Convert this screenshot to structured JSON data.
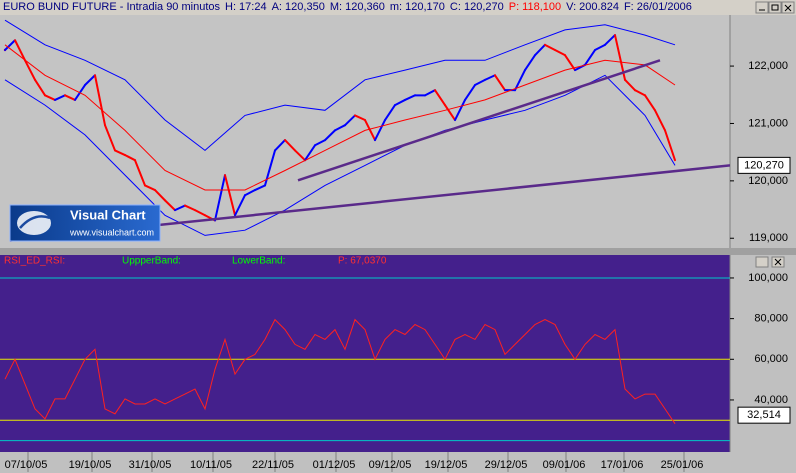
{
  "window": {
    "title": "EURO BUND FUTURE - Intradia 90 minutos",
    "info": [
      {
        "text": "H: 17:24",
        "color": "#00007f"
      },
      {
        "text": "A: 120,350",
        "color": "#00007f"
      },
      {
        "text": "M: 120,360",
        "color": "#00007f"
      },
      {
        "text": "m: 120,170",
        "color": "#00007f"
      },
      {
        "text": "C: 120,270",
        "color": "#00007f"
      },
      {
        "text": "P: 118,100",
        "color": "#ff0000"
      },
      {
        "text": "V: 200.824",
        "color": "#00007f"
      },
      {
        "text": "F: 26/01/2006",
        "color": "#00007f"
      }
    ],
    "logo": {
      "name": "Visual Chart",
      "url": "www.visualchart.com"
    }
  },
  "chart_data": [
    {
      "type": "line",
      "xlim": [
        -0.5,
        72.5
      ],
      "ylim": [
        118.83,
        122.89
      ],
      "yticks": [
        {
          "value": 122,
          "label": "122,000"
        },
        {
          "value": 121,
          "label": "121,000"
        },
        {
          "value": 120,
          "label": "120,000"
        },
        {
          "value": 119,
          "label": "119,000"
        }
      ],
      "marker": {
        "value": 120.27,
        "label": "120,270"
      },
      "series": [
        {
          "color": "#0000ff",
          "down_color": "#ff0000",
          "width": 2,
          "x": [
            0,
            1,
            2,
            3,
            4,
            5,
            6,
            7,
            8,
            9,
            10,
            11,
            12,
            13,
            14,
            15,
            16,
            17,
            18,
            19,
            20,
            21,
            22,
            23,
            24,
            25,
            26,
            27,
            28,
            29,
            30,
            31,
            32,
            33,
            34,
            35,
            36,
            37,
            38,
            39,
            40,
            41,
            42,
            43,
            44,
            45,
            46,
            47,
            48,
            49,
            50,
            51,
            52,
            53,
            54,
            55,
            56,
            57,
            58,
            59,
            60,
            61,
            62,
            63,
            64,
            65,
            66,
            67
          ],
          "values": [
            122.28,
            122.45,
            122.1,
            121.76,
            121.49,
            121.41,
            121.49,
            121.41,
            121.67,
            121.84,
            120.97,
            120.53,
            120.45,
            120.36,
            119.92,
            119.84,
            119.66,
            119.49,
            119.57,
            119.49,
            119.4,
            119.31,
            120.1,
            119.4,
            119.75,
            119.84,
            119.92,
            120.53,
            120.71,
            120.53,
            120.36,
            120.62,
            120.71,
            120.88,
            120.97,
            121.14,
            121.06,
            120.71,
            121.06,
            121.32,
            121.41,
            121.49,
            121.49,
            121.58,
            121.32,
            121.06,
            121.41,
            121.67,
            121.76,
            121.84,
            121.58,
            121.58,
            121.93,
            122.19,
            122.37,
            122.28,
            122.19,
            121.93,
            122.02,
            122.28,
            122.37,
            122.54,
            121.76,
            121.58,
            121.49,
            121.23,
            120.88,
            120.36
          ]
        },
        {
          "color": "#ff0000",
          "width": 1,
          "x": [
            0,
            4,
            8,
            12,
            16,
            20,
            24,
            28,
            32,
            36,
            40,
            44,
            48,
            52,
            56,
            60,
            64,
            67
          ],
          "values": [
            122.37,
            121.84,
            121.49,
            120.88,
            120.18,
            119.84,
            119.84,
            120.18,
            120.53,
            120.88,
            121.06,
            121.23,
            121.41,
            121.67,
            121.93,
            122.1,
            122.02,
            121.67
          ]
        },
        {
          "color": "#0000ff",
          "width": 1,
          "x": [
            0,
            4,
            8,
            12,
            16,
            20,
            24,
            28,
            32,
            36,
            40,
            44,
            48,
            52,
            56,
            60,
            64,
            67
          ],
          "values": [
            122.8,
            122.37,
            122.1,
            121.76,
            121.06,
            120.53,
            121.14,
            121.32,
            121.23,
            121.76,
            121.93,
            122.1,
            122.1,
            122.37,
            122.63,
            122.72,
            122.54,
            122.37
          ]
        },
        {
          "color": "#0000ff",
          "width": 1,
          "x": [
            0,
            4,
            8,
            12,
            16,
            20,
            24,
            28,
            32,
            36,
            40,
            44,
            48,
            52,
            56,
            60,
            64,
            67
          ],
          "values": [
            121.76,
            121.32,
            120.8,
            120.1,
            119.4,
            119.05,
            119.14,
            119.49,
            119.92,
            120.27,
            120.62,
            120.88,
            121.06,
            121.23,
            121.49,
            121.84,
            121.14,
            120.27
          ]
        },
        {
          "color": "#5a2a8a",
          "width": 2.5,
          "x": [
            0.5,
            72.5
          ],
          "values": [
            118.96,
            120.27
          ]
        },
        {
          "color": "#5a2a8a",
          "width": 2.5,
          "x": [
            29.3,
            65.5
          ],
          "values": [
            120.01,
            122.1
          ]
        }
      ]
    },
    {
      "type": "line",
      "xlim": [
        -0.5,
        72.5
      ],
      "ylim": [
        14.4,
        104.9
      ],
      "indicator": [
        {
          "text": "RSI_ED_RSI:",
          "color": "#ff3030"
        },
        {
          "text": "UppperBand:",
          "color": "#00ff00"
        },
        {
          "text": "LowerBand:",
          "color": "#00ff00"
        },
        {
          "text": "P: 67,0370",
          "color": "#ff3030"
        }
      ],
      "yticks": [
        {
          "value": 100,
          "label": "100,000"
        },
        {
          "value": 80,
          "label": "80,000"
        },
        {
          "value": 60,
          "label": "60,000"
        },
        {
          "value": 40,
          "label": "40,000"
        }
      ],
      "xticks": [
        {
          "value": 2.3,
          "label": "07/10/05"
        },
        {
          "value": 8.7,
          "label": "19/10/05"
        },
        {
          "value": 14.7,
          "label": "31/10/05"
        },
        {
          "value": 20.8,
          "label": "10/11/05"
        },
        {
          "value": 27,
          "label": "22/11/05"
        },
        {
          "value": 33.1,
          "label": "01/12/05"
        },
        {
          "value": 38.7,
          "label": "09/12/05"
        },
        {
          "value": 44.3,
          "label": "19/12/05"
        },
        {
          "value": 50.3,
          "label": "29/12/05"
        },
        {
          "value": 56.1,
          "label": "09/01/06"
        },
        {
          "value": 61.9,
          "label": "17/01/06"
        },
        {
          "value": 67.9,
          "label": "25/01/06"
        }
      ],
      "hlines": [
        {
          "value": 100,
          "color": "#00c8c8"
        },
        {
          "value": 60,
          "color": "#e8e800"
        },
        {
          "value": 30,
          "color": "#e8e800"
        },
        {
          "value": 20,
          "color": "#00c8c8"
        }
      ],
      "marker": {
        "value": 32.514,
        "label": "32,514"
      },
      "series": [
        {
          "color": "#ff2020",
          "width": 1,
          "x": [
            0,
            1,
            2,
            3,
            4,
            5,
            6,
            7,
            8,
            9,
            10,
            11,
            12,
            13,
            14,
            15,
            16,
            17,
            18,
            19,
            20,
            21,
            22,
            23,
            24,
            25,
            26,
            27,
            28,
            29,
            30,
            31,
            32,
            33,
            34,
            35,
            36,
            37,
            38,
            39,
            40,
            41,
            42,
            43,
            44,
            45,
            46,
            47,
            48,
            49,
            50,
            51,
            52,
            53,
            54,
            55,
            56,
            57,
            58,
            59,
            60,
            61,
            62,
            63,
            64,
            65,
            66,
            67
          ],
          "values": [
            50.2,
            60,
            47.8,
            35.6,
            30.7,
            40.5,
            40.5,
            50.2,
            60,
            64.9,
            35.6,
            33.2,
            40.5,
            38,
            38,
            40.5,
            38,
            40.5,
            42.9,
            45.4,
            35.6,
            55.1,
            69.8,
            52.7,
            60,
            62.4,
            69.8,
            79.5,
            74.6,
            67.3,
            64.9,
            72.2,
            69.8,
            74.6,
            64.9,
            79.5,
            74.6,
            60,
            69.8,
            74.6,
            72.2,
            77.1,
            74.6,
            67.3,
            60,
            69.8,
            72.2,
            69.8,
            77.1,
            74.6,
            62.4,
            67.3,
            72.2,
            77.1,
            79.5,
            77.1,
            67.3,
            60,
            67.3,
            72.2,
            69.8,
            74.6,
            45.4,
            40.5,
            42.9,
            42.9,
            35.6,
            28.3
          ]
        }
      ]
    }
  ]
}
